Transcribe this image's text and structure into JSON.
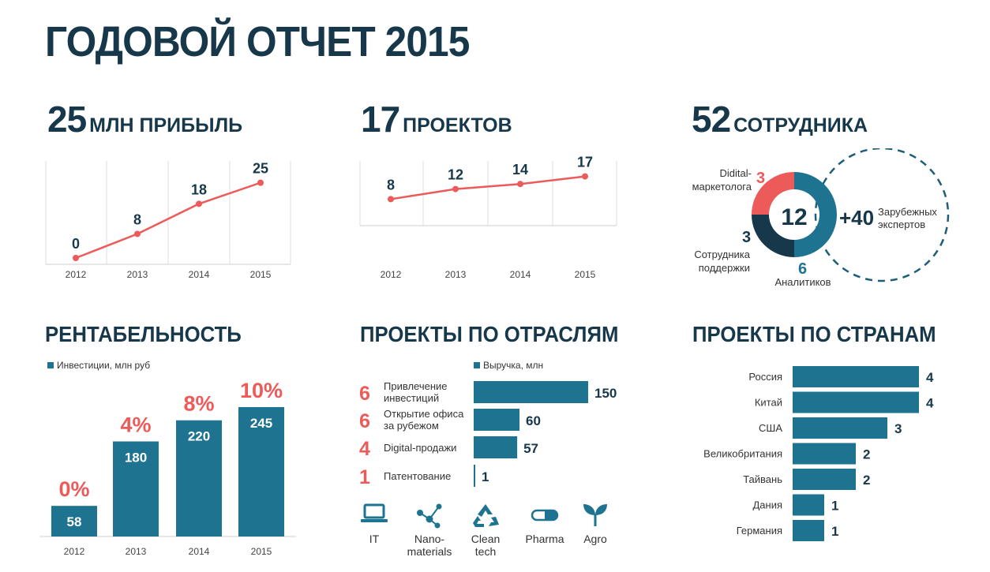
{
  "title": "ГОДОВОЙ ОТЧЕТ 2015",
  "kpis": {
    "profit": {
      "number": "25",
      "label": "МЛН ПРИБЫЛЬ"
    },
    "projects": {
      "number": "17",
      "label": "ПРОЕКТОВ"
    },
    "staff": {
      "number": "52",
      "label": "СОТРУДНИКА"
    }
  },
  "sections": {
    "profitability": "РЕНТАБЕЛЬНОСТЬ",
    "industries": "ПРОЕКТЫ ПО ОТРАСЛЯМ",
    "countries": "ПРОЕКТЫ ПО СТРАНАМ"
  },
  "colors": {
    "primary": "#1e7390",
    "accent": "#ec5a5a",
    "dark": "#17384a"
  },
  "staff_breakdown": {
    "center": "12",
    "segments": [
      {
        "value": "3",
        "label": "Didital-маркетолога",
        "color": "#ec5a5a"
      },
      {
        "value": "6",
        "label": "Аналитиков",
        "color": "#1e7390"
      },
      {
        "value": "3",
        "label": "Сотрудника поддержки",
        "color": "#17384a"
      }
    ],
    "external": {
      "value": "+40",
      "label": "Зарубежных экспертов"
    }
  },
  "industry_icons": [
    {
      "icon": "laptop-icon",
      "label": "IT"
    },
    {
      "icon": "molecule-icon",
      "label": "Nano-materials"
    },
    {
      "icon": "recycle-icon",
      "label": "Clean tech"
    },
    {
      "icon": "pill-icon",
      "label": "Pharma"
    },
    {
      "icon": "sprout-icon",
      "label": "Agro"
    }
  ],
  "chart_data": [
    {
      "type": "line",
      "categories": [
        "2012",
        "2013",
        "2014",
        "2015"
      ],
      "series": [
        {
          "values": [
            0,
            8,
            18,
            25
          ]
        }
      ],
      "data_labels": [
        "0",
        "8",
        "18",
        "25"
      ],
      "ylim": [
        0,
        27
      ],
      "grid": "vertical"
    },
    {
      "type": "line",
      "categories": [
        "2012",
        "2013",
        "2014",
        "2015"
      ],
      "series": [
        {
          "values": [
            8,
            12,
            14,
            17
          ]
        }
      ],
      "data_labels": [
        "8",
        "12",
        "14",
        "17"
      ],
      "ylim": [
        0,
        20
      ],
      "grid": "vertical"
    },
    {
      "type": "bar",
      "categories": [
        "2012",
        "2013",
        "2014",
        "2015"
      ],
      "series": [
        {
          "name": "Инвестиции, млн руб",
          "values": [
            58,
            180,
            220,
            245
          ]
        }
      ],
      "value_labels": [
        "58",
        "180",
        "220",
        "245"
      ],
      "percent_labels": [
        "0%",
        "4%",
        "8%",
        "10%"
      ],
      "ylim": [
        0,
        245
      ],
      "legend": "top-left"
    },
    {
      "type": "bar",
      "orientation": "horizontal",
      "categories": [
        "Привлечение инвестиций",
        "Открытие офиса за рубежом",
        "Digital-продажи",
        "Патентование"
      ],
      "counts": [
        "6",
        "6",
        "4",
        "1"
      ],
      "series": [
        {
          "name": "Выручка, млн",
          "values": [
            150,
            60,
            57,
            1
          ]
        }
      ],
      "value_labels": [
        "150",
        "60",
        "57",
        "1"
      ],
      "legend": "top"
    },
    {
      "type": "bar",
      "orientation": "horizontal",
      "categories": [
        "Россия",
        "Китай",
        "США",
        "Великобритания",
        "Тайвань",
        "Дания",
        "Германия"
      ],
      "series": [
        {
          "values": [
            4,
            4,
            3,
            2,
            2,
            1,
            1
          ]
        }
      ],
      "value_labels": [
        "4",
        "4",
        "3",
        "2",
        "2",
        "1",
        "1"
      ]
    }
  ]
}
